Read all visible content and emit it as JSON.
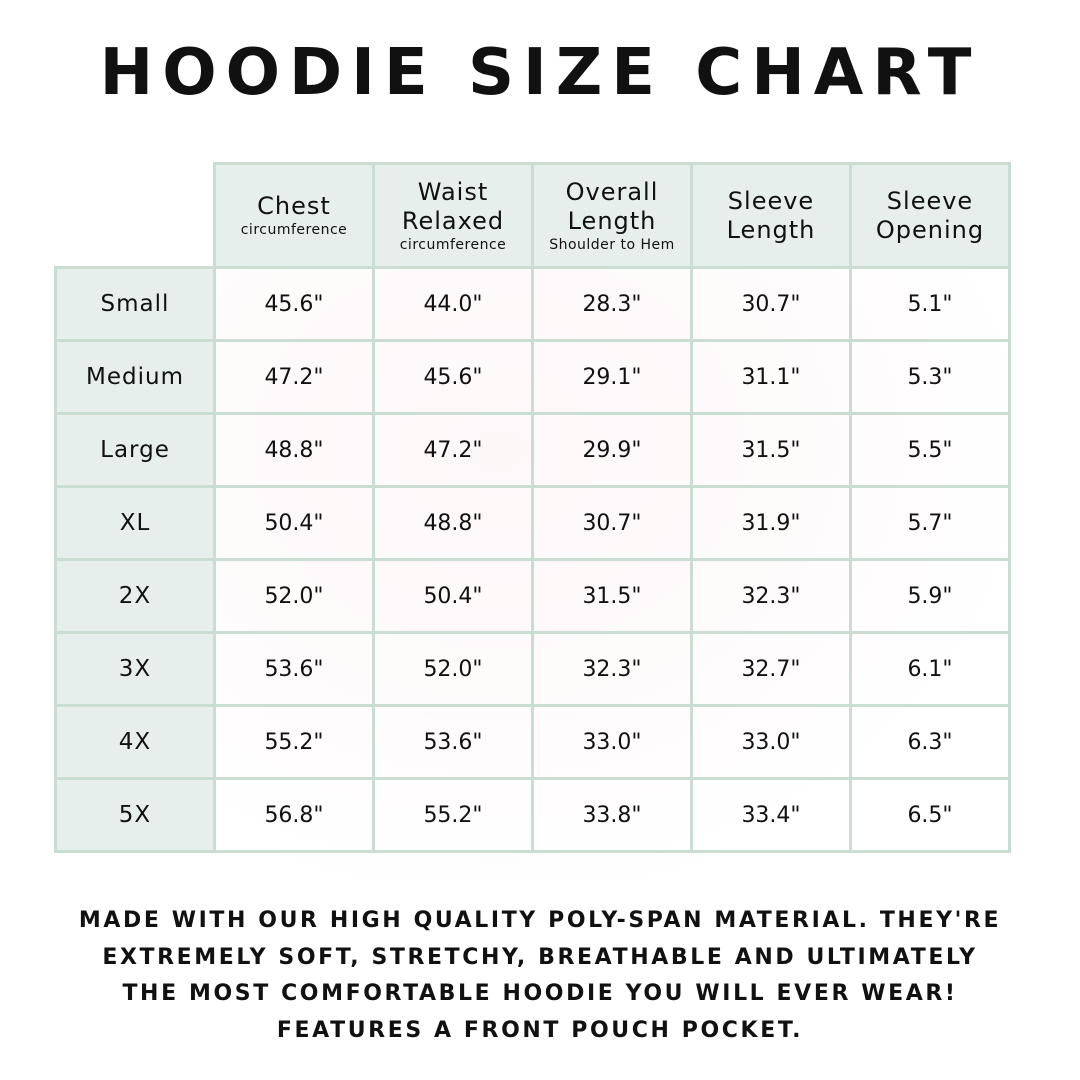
{
  "title": "HOODIE SIZE CHART",
  "columns": [
    {
      "label": "Chest",
      "sub": "circumference"
    },
    {
      "label": "Waist Relaxed",
      "sub": "circumference"
    },
    {
      "label": "Overall Length",
      "sub": "Shoulder to Hem"
    },
    {
      "label": "Sleeve Length",
      "sub": ""
    },
    {
      "label": "Sleeve Opening",
      "sub": ""
    }
  ],
  "rows": [
    {
      "size": "Small",
      "values": [
        "45.6\"",
        "44.0\"",
        "28.3\"",
        "30.7\"",
        "5.1\""
      ]
    },
    {
      "size": "Medium",
      "values": [
        "47.2\"",
        "45.6\"",
        "29.1\"",
        "31.1\"",
        "5.3\""
      ]
    },
    {
      "size": "Large",
      "values": [
        "48.8\"",
        "47.2\"",
        "29.9\"",
        "31.5\"",
        "5.5\""
      ]
    },
    {
      "size": "XL",
      "values": [
        "50.4\"",
        "48.8\"",
        "30.7\"",
        "31.9\"",
        "5.7\""
      ]
    },
    {
      "size": "2X",
      "values": [
        "52.0\"",
        "50.4\"",
        "31.5\"",
        "32.3\"",
        "5.9\""
      ]
    },
    {
      "size": "3X",
      "values": [
        "53.6\"",
        "52.0\"",
        "32.3\"",
        "32.7\"",
        "6.1\""
      ]
    },
    {
      "size": "4X",
      "values": [
        "55.2\"",
        "53.6\"",
        "33.0\"",
        "33.0\"",
        "6.3\""
      ]
    },
    {
      "size": "5X",
      "values": [
        "56.8\"",
        "55.2\"",
        "33.8\"",
        "33.4\"",
        "6.5\""
      ]
    }
  ],
  "footer": [
    "Made with our high quality poly-span material. They're",
    "extremely soft, stretchy, breathable and ultimately",
    "the most comfortable hoodie you will ever wear!",
    "Features a front pouch pocket."
  ],
  "colors": {
    "header_bg": "#e6efeb",
    "border": "#c9ddd3",
    "text": "#111111"
  }
}
